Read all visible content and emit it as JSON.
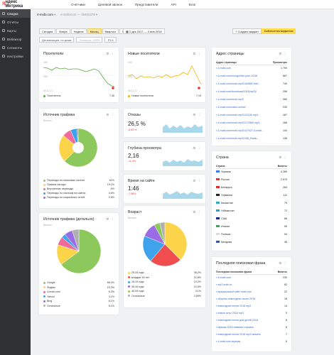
{
  "sidebar": {
    "logo_y": "Я",
    "logo_text": "ндекс Метрика",
    "items": [
      {
        "label": "Сводка"
      },
      {
        "label": "Отчёты"
      },
      {
        "label": "Карты"
      },
      {
        "label": "Вебвизор"
      },
      {
        "label": "Сегменты"
      },
      {
        "label": "Настройки"
      }
    ]
  },
  "topnav": {
    "items": [
      "Счётчики",
      "Целевой звонок",
      "Представители",
      "API",
      "Блог"
    ]
  },
  "breadcrumb": {
    "site": "4-mobi.com",
    "id": "4-mobi.com — 46462378"
  },
  "toolbar": {
    "periods": [
      "Сегодня",
      "Вчера",
      "Неделя",
      "Месяц",
      "Квартал",
      "Год"
    ],
    "selected": "Месяц",
    "daterange": "2 дек 2017 — 4 янв 2018",
    "create_widget": "+ Создать виджет",
    "library": "Библиотека виджетов"
  },
  "filters": {
    "detail": "Детализация: по дням",
    "accuracy": "Точность: 100%",
    "segment": "1/1"
  },
  "cards": {
    "visitors": {
      "title": "Посетители",
      "value": "7,36",
      "legend": "Посетители",
      "ymax": "400",
      "ymid": "200",
      "date": "05.12.17"
    },
    "new_visitors": {
      "title": "Новые посетители",
      "value": "7,19",
      "legend": "Новые посетители",
      "ymax": "400",
      "ymid": "200",
      "date": "05.12.17"
    },
    "traffic": {
      "title": "Источник трафика",
      "sub": "Визиты",
      "items": [
        {
          "label": "Переходы из поисковых систем",
          "value": "51%",
          "color": "#8dc85c"
        },
        {
          "label": "Прямые заходы",
          "value": "19.1%",
          "color": "#fbd44a"
        },
        {
          "label": "Внутренние переходы",
          "value": "6%",
          "color": "#f06a9b"
        },
        {
          "label": "Переходы по ссылкам на сайтах",
          "value": "4.6%",
          "color": "#3ea3ea"
        },
        {
          "label": "Переходы из социальных сетей",
          "value": "0.8%",
          "color": "#9c6ce6"
        }
      ]
    },
    "bounce": {
      "title": "Отказы",
      "value": "26,5 %",
      "delta": "-6,69 %"
    },
    "depth": {
      "title": "Глубина просмотра",
      "value": "2,16",
      "delta": "-11,4%"
    },
    "time": {
      "title": "Время на сайте",
      "value": "1:46",
      "delta": "-7,98%"
    },
    "traffic_detail": {
      "title": "Источник трафика (детально)",
      "sub": "Визиты",
      "items": [
        {
          "label": "Google",
          "value": "66,3%",
          "color": "#8dc85c"
        },
        {
          "label": "Яндекс",
          "value": "15,3%",
          "color": "#fbd44a"
        },
        {
          "label": "4-mobi.com",
          "value": "6,3%",
          "color": "#f06a9b"
        },
        {
          "label": "Yahoo!",
          "value": "3,1%",
          "color": "#3ea3ea"
        },
        {
          "label": "Bing",
          "value": "6,1%",
          "color": "#9c6ce6"
        },
        {
          "label": "Остальные",
          "value": "5,1%",
          "color": "#b0b0b0"
        }
      ]
    },
    "age": {
      "title": "Возраст",
      "sub": "Визиты",
      "items": [
        {
          "label": "25-34 года",
          "value": "36,2%",
          "color": "#fbd44a"
        },
        {
          "label": "младше 18 лет",
          "value": "22,8%",
          "color": "#f04e4e"
        },
        {
          "label": "18-24 года",
          "value": "19,2%",
          "color": "#3ea3ea"
        },
        {
          "label": "35-44 года",
          "value": "10,5%",
          "color": "#9c6ce6"
        },
        {
          "label": "45-54 года",
          "value": "4,1%",
          "color": "#8dc85c"
        },
        {
          "label": "Остальные",
          "value": "3,59%",
          "color": "#b0b0b0"
        }
      ]
    },
    "pages": {
      "title": "Адрес страницы",
      "col1": "Адрес страницы",
      "col2": "Просмотры",
      "rows": [
        {
          "url": "4-mobi.com",
          "value": "1 790"
        },
        {
          "url": "4-mobi.com/mongol/the-porn-2018/",
          "value": "667"
        },
        {
          "url": "4-mobi.com/mobi-mp3/1/bl885-%d0...",
          "value": "740"
        },
        {
          "url": "4-mobi.com/download/1343(mp3)/",
          "value": "298"
        },
        {
          "url": "4-mobi.com/mobi-mp3/",
          "value": "280"
        },
        {
          "url": "4-mobi.com/radio-online/",
          "value": "233"
        },
        {
          "url": "4-mobi.com/mobi-mp3/1/2118/.mp3...",
          "value": "167"
        },
        {
          "url": "4-mobi.com/mobi-mp3/1/17085/.mp3...",
          "value": "166"
        },
        {
          "url": "4-mobi.com/mobi-mp3/1/27427-4-mobi...",
          "value": "144"
        },
        {
          "url": "4-mobi.com/mobi-mp3/1/56_Radio...",
          "value": "138"
        }
      ]
    },
    "country": {
      "title": "Страна",
      "col1": "Страна",
      "col2": "Визиты",
      "rows": [
        {
          "name": "Украина",
          "value": "4 289",
          "flag": "#3e7be6"
        },
        {
          "name": "Россия",
          "value": "2 679",
          "flag": "#d33"
        },
        {
          "name": "Беларусь",
          "value": "264",
          "flag": "#c33"
        },
        {
          "name": "Германия",
          "value": "111",
          "flag": "#222"
        },
        {
          "name": "Казахстан",
          "value": "79",
          "flag": "#3ab"
        },
        {
          "name": "Узбекистан",
          "value": "72",
          "flag": "#39c"
        },
        {
          "name": "США",
          "value": "68",
          "flag": "#228"
        },
        {
          "name": "Италия",
          "value": "55",
          "flag": "#3a5"
        },
        {
          "name": "Польша",
          "value": "54",
          "flag": "#ddd"
        },
        {
          "name": "Молдова",
          "value": "48",
          "flag": "#35a"
        }
      ]
    },
    "search": {
      "title": "Последняя поисковая фраза",
      "col1": "Последняя поисковая фраза",
      "col2": "Визиты",
      "rows": [
        {
          "phrase": "4-mobi.com",
          "value": "230"
        },
        {
          "phrase": "mp3 mobi.ru",
          "value": "62"
        },
        {
          "phrase": "музыкальный сайт mobi.com",
          "value": "22"
        },
        {
          "phrase": "сборник новогодних песен 2018",
          "value": "18"
        },
        {
          "phrase": "новогодние песни 2018 mp3",
          "value": "14"
        },
        {
          "phrase": "новые хиты 2018 mp3",
          "value": "9"
        },
        {
          "phrase": "новогодние песни для детей 2018",
          "value": "8"
        },
        {
          "phrase": "музыка 2018 новинки слушать",
          "value": "8"
        },
        {
          "phrase": "новогодние песни 2018 mp3 скачать",
          "value": "7"
        },
        {
          "phrase": "4-mobi.com музыка",
          "value": "6"
        }
      ]
    }
  }
}
